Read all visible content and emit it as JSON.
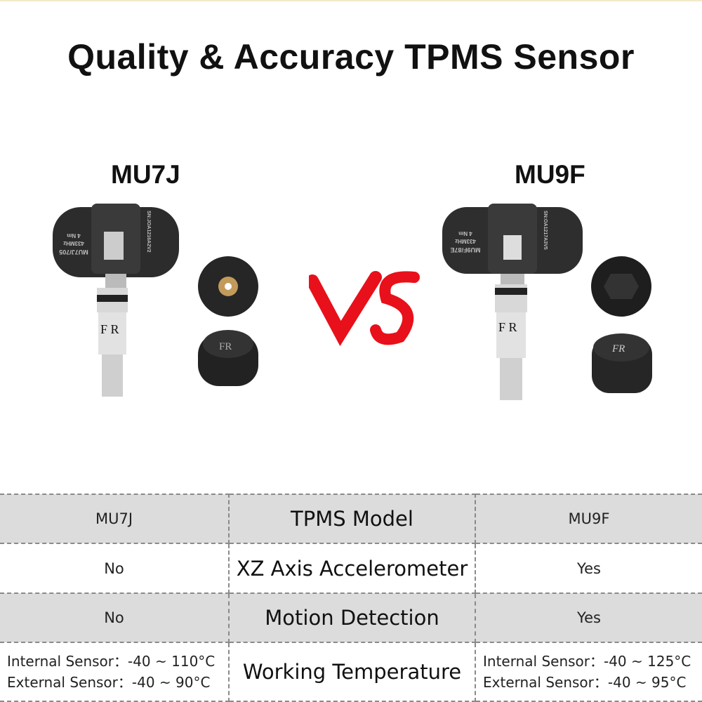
{
  "title": "Quality & Accuracy TPMS Sensor",
  "left_model": "MU7J",
  "right_model": "MU9F",
  "vs_label": "VS",
  "colors": {
    "vs_red": "#e8101a",
    "row_gray": "#dcdcdc",
    "sensor_black": "#2a2a2a"
  },
  "sensor_markings": {
    "left": [
      "MU7J/705",
      "433MHz",
      "4 Nm",
      "SN:JOA1216A2V2",
      "FR"
    ],
    "right": [
      "MU9F/87E",
      "433MHz",
      "4 Nm",
      "SN:OA1217A3V5",
      "FR"
    ]
  },
  "table": {
    "rows": [
      {
        "left": "MU7J",
        "feature": "TPMS Model",
        "right": "MU9F"
      },
      {
        "left": "No",
        "feature": "XZ Axis Accelerometer",
        "right": "Yes"
      },
      {
        "left": "No",
        "feature": "Motion Detection",
        "right": "Yes"
      },
      {
        "left_lines": [
          "Internal Sensor：-40 ~ 110°C",
          "External Sensor：-40 ~ 90°C"
        ],
        "feature": "Working Temperature",
        "right_lines": [
          "Internal Sensor：-40 ~ 125°C",
          "External Sensor：-40 ~ 95°C"
        ]
      }
    ]
  }
}
